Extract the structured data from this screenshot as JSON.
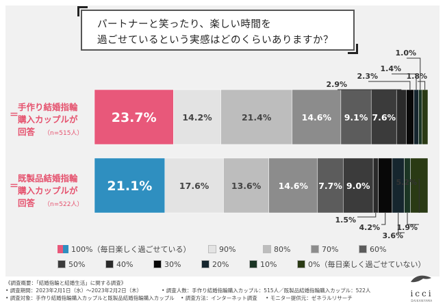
{
  "question": {
    "line1": "パートナーと笑ったり、楽しい時間を",
    "line2": "過ごせているという実感はどのくらいありますか？"
  },
  "groups": [
    {
      "eq_top": "＝",
      "name_line1": "手作り結婚指輪",
      "name_line2": "購入カップルが",
      "name_line3": "回答",
      "eq_bottom": "＝",
      "n": "（n=515人）"
    },
    {
      "eq_top": "＝",
      "name_line1": "既製品結婚指輪",
      "name_line2": "購入カップルが",
      "name_line3": "回答",
      "eq_bottom": "＝",
      "n": "（n=522人）"
    }
  ],
  "chart_data": {
    "type": "bar",
    "orientation": "horizontal",
    "stacked": true,
    "xlim": [
      0,
      100
    ],
    "categories": [
      "手作り結婚指輪購入カップルが回答",
      "既製品結婚指輪購入カップルが回答"
    ],
    "series": [
      {
        "name": "100%（毎日楽しく過ごせている）",
        "color": "#e8587a",
        "values": [
          23.7,
          21.1
        ],
        "labels": [
          "23.7%",
          "21.1%"
        ]
      },
      {
        "name": "90%",
        "color": "#e3e3e3",
        "values": [
          14.2,
          17.6
        ],
        "labels": [
          "14.2%",
          "17.6%"
        ]
      },
      {
        "name": "80%",
        "color": "#bdbdbd",
        "values": [
          21.4,
          13.6
        ],
        "labels": [
          "21.4%",
          "13.6%"
        ]
      },
      {
        "name": "70%",
        "color": "#8c8c8c",
        "values": [
          14.6,
          14.6
        ],
        "labels": [
          "14.6%",
          "14.6%"
        ]
      },
      {
        "name": "60%",
        "color": "#5c5c5c",
        "values": [
          9.1,
          7.7
        ],
        "labels": [
          "9.1%",
          "7.7%"
        ]
      },
      {
        "name": "50%",
        "color": "#3b3b3b",
        "values": [
          7.6,
          9.0
        ],
        "labels": [
          "7.6%",
          "9.0%"
        ]
      },
      {
        "name": "40%",
        "color": "#2a2a2a",
        "values": [
          2.9,
          1.5
        ],
        "labels": [
          "2.9%",
          "1.5%"
        ]
      },
      {
        "name": "30%",
        "color": "#080808",
        "values": [
          2.3,
          4.2
        ],
        "labels": [
          "2.3%",
          "4.2%"
        ]
      },
      {
        "name": "20%",
        "color": "#16262e",
        "values": [
          1.4,
          3.6
        ],
        "labels": [
          "1.4%",
          "3.6%"
        ]
      },
      {
        "name": "10%",
        "color": "#1b3524",
        "values": [
          1.0,
          1.9
        ],
        "labels": [
          "1.0%",
          "1.9%"
        ]
      },
      {
        "name": "0%（毎日楽しく過ごせていない）",
        "color": "#2a3a14",
        "values": [
          1.8,
          5.2
        ],
        "labels": [
          "1.8%",
          "5.2%"
        ]
      }
    ]
  },
  "footer": {
    "l1": "《調査概要：「結婚指輪と結婚生活」に関する調査》",
    "l2a": "• 調査期間：2023年2月1日（水）～2023年2月2日（木）",
    "l2b": "• 調査人数：手作り結婚指輪購入カップル：515人／既製品結婚指輪購入カップル：522人",
    "l3a": "• 調査対象：手作り結婚指輪購入カップルと既製品結婚指輪購入カップル",
    "l3b": "• 調査方法：インターネット調査",
    "l3c": "• モニター提供元：ゼネラルリサーチ"
  },
  "logo": {
    "text": "icci",
    "sub": "DAIKANYAMA"
  }
}
